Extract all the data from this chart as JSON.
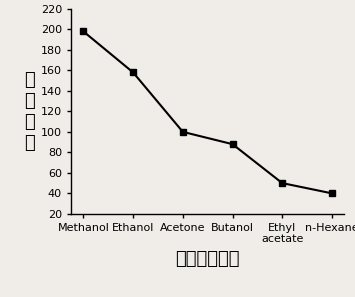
{
  "categories": [
    "Methanol",
    "Ethanol",
    "Acetone",
    "Butanol",
    "Ethyl\nacetate",
    "n-Hexane"
  ],
  "values": [
    198,
    158,
    100,
    88,
    50,
    40
  ],
  "ylim": [
    20,
    220
  ],
  "yticks": [
    20,
    40,
    60,
    80,
    100,
    120,
    140,
    160,
    180,
    200,
    220
  ],
  "ylabel_chars": [
    "信",
    "号",
    "強",
    "度"
  ],
  "xlabel": "中性解吸试剂",
  "line_color": "#000000",
  "marker": "s",
  "marker_size": 5,
  "linewidth": 1.5,
  "background_color": "#f0ede8",
  "tick_fontsize": 8,
  "ylabel_fontsize": 13,
  "xlabel_fontsize": 13
}
